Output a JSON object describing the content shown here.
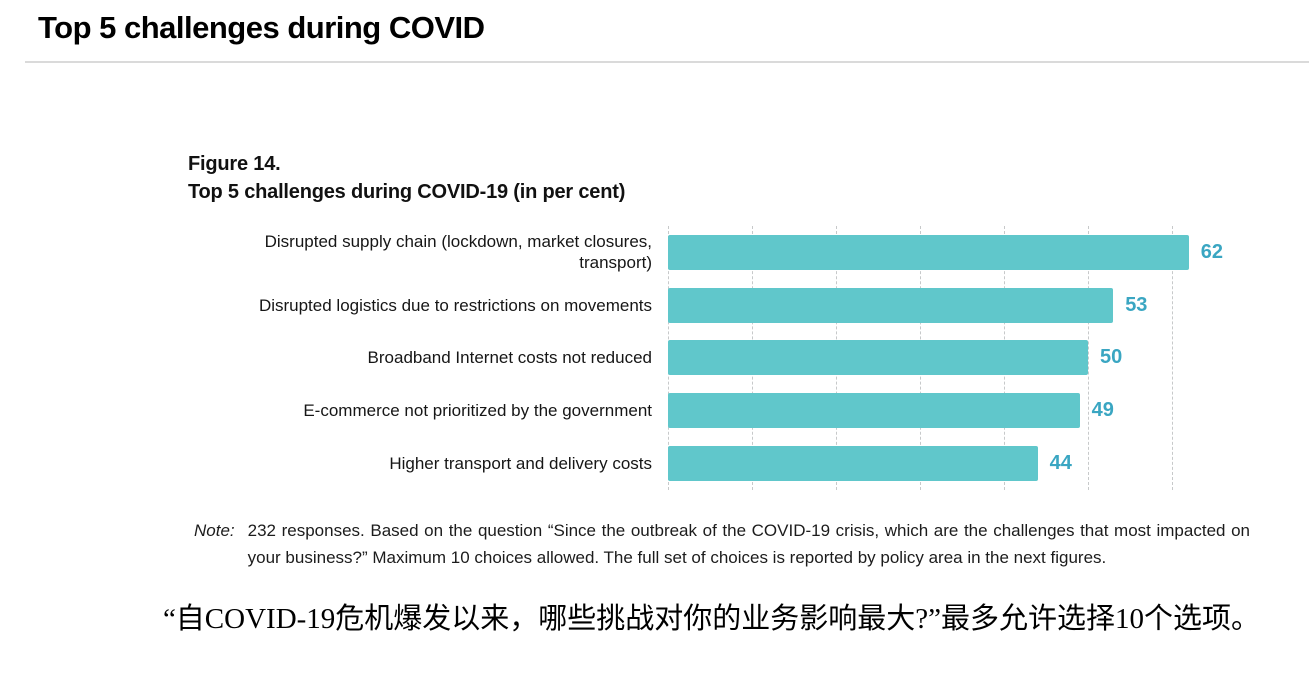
{
  "page": {
    "title": "Top 5 challenges during COVID"
  },
  "figure": {
    "label": "Figure 14.",
    "title": "Top 5 challenges during COVID-19 (in per cent)"
  },
  "chart_data": {
    "type": "bar",
    "orientation": "horizontal",
    "title": "Top 5 challenges during COVID-19 (in per cent)",
    "unit": "per cent",
    "categories": [
      "Disrupted supply chain (lockdown, market closures, transport)",
      "Disrupted logistics due to restrictions on movements",
      "Broadband Internet costs not reduced",
      "E-commerce not prioritized by the government",
      "Higher transport and delivery costs"
    ],
    "category_lines": [
      [
        "Disrupted supply chain (lockdown, market closures,",
        "transport)"
      ],
      [
        "Disrupted logistics due to restrictions on movements"
      ],
      [
        "Broadband Internet costs not reduced"
      ],
      [
        "E-commerce not prioritized by the government"
      ],
      [
        "Higher transport and delivery costs"
      ]
    ],
    "values": [
      62,
      53,
      50,
      49,
      44
    ],
    "xlim": [
      0,
      68
    ],
    "axis_gridlines": [
      0,
      10,
      20,
      30,
      40,
      50,
      60
    ],
    "grid_style": "dashed",
    "legend": "none",
    "bar_color": "#60C7CB",
    "value_label_color": "#3AA6C2",
    "gridline_color": "#C7C9CA"
  },
  "note": {
    "label": "Note:",
    "text": "232 responses. Based on the question “Since the outbreak of the COVID-19 crisis, which are the challenges that most impacted on your business?” Maximum 10 choices allowed. The full set of choices is reported by policy area in the next figures."
  },
  "translation": {
    "text": "“自COVID-19危机爆发以来，哪些挑战对你的业务影响最大?”最多允许选择10个选项。"
  }
}
